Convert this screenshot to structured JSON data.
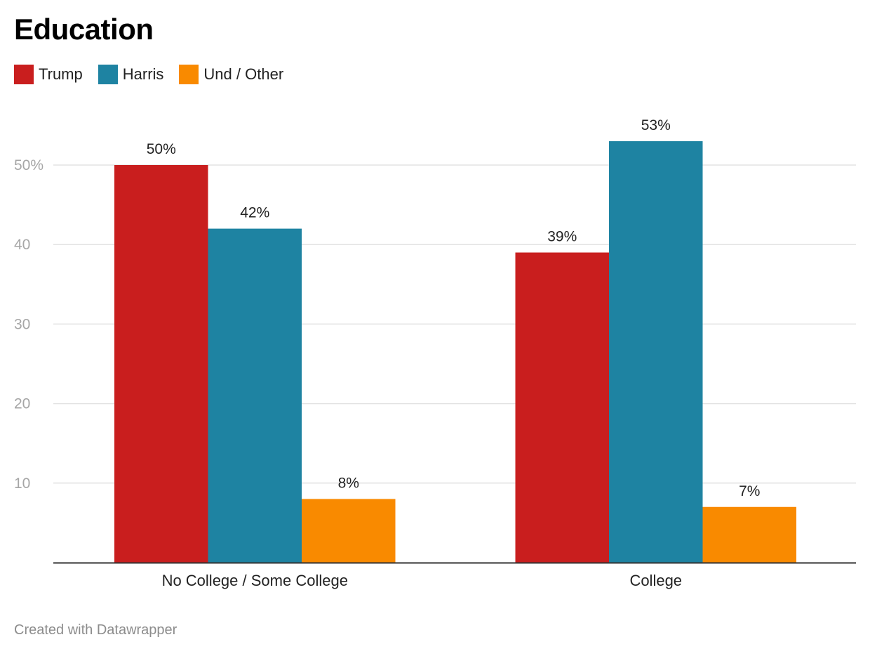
{
  "title": "Education",
  "footer": "Created with Datawrapper",
  "legend": [
    {
      "label": "Trump",
      "color": "#c91e1e"
    },
    {
      "label": "Harris",
      "color": "#1e83a2"
    },
    {
      "label": "Und / Other",
      "color": "#f98a00"
    }
  ],
  "chart_data": {
    "type": "bar",
    "title": "Education",
    "xlabel": "",
    "ylabel": "",
    "ylim": [
      0,
      55
    ],
    "grid": true,
    "legend_position": "top-left",
    "categories": [
      "No College / Some College",
      "College"
    ],
    "yticks": [
      {
        "value": 10,
        "label": "10"
      },
      {
        "value": 20,
        "label": "20"
      },
      {
        "value": 30,
        "label": "30"
      },
      {
        "value": 40,
        "label": "40"
      },
      {
        "value": 50,
        "label": "50%"
      }
    ],
    "series": [
      {
        "name": "Trump",
        "color": "#c91e1e",
        "values": [
          50,
          39
        ],
        "labels": [
          "50%",
          "39%"
        ]
      },
      {
        "name": "Harris",
        "color": "#1e83a2",
        "values": [
          42,
          53
        ],
        "labels": [
          "42%",
          "53%"
        ]
      },
      {
        "name": "Und / Other",
        "color": "#f98a00",
        "values": [
          8,
          7
        ],
        "labels": [
          "8%",
          "7%"
        ]
      }
    ]
  }
}
